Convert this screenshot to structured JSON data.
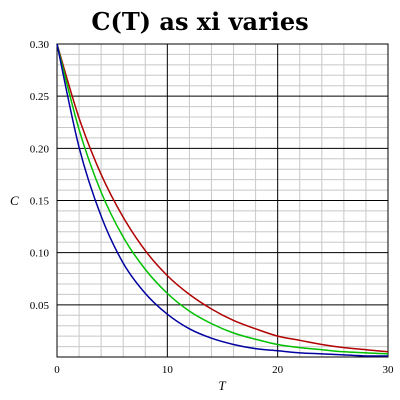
{
  "chart_data": {
    "type": "line",
    "title": "C(T) as xi varies",
    "xlabel": "T",
    "ylabel": "C",
    "xlim": [
      0,
      30
    ],
    "ylim": [
      0,
      0.3
    ],
    "x_ticks": [
      0,
      10,
      20,
      30
    ],
    "x_tick_labels": [
      "0",
      "10",
      "20",
      "30"
    ],
    "y_ticks": [
      0.05,
      0.1,
      0.15,
      0.2,
      0.25,
      0.3
    ],
    "y_tick_labels": [
      "0.05",
      "0.10",
      "0.15",
      "0.20",
      "0.25",
      "0.30"
    ],
    "grid": true,
    "x": [
      0,
      2,
      4,
      6,
      8,
      10,
      12,
      14,
      16,
      18,
      20,
      22,
      24,
      26,
      28,
      30
    ],
    "series": [
      {
        "color": "#b00000",
        "values": [
          0.3,
          0.229,
          0.175,
          0.134,
          0.102,
          0.078,
          0.06,
          0.046,
          0.035,
          0.027,
          0.02,
          0.016,
          0.012,
          0.009,
          0.007,
          0.005
        ]
      },
      {
        "color": "#00c000",
        "values": [
          0.3,
          0.218,
          0.158,
          0.115,
          0.084,
          0.061,
          0.044,
          0.032,
          0.023,
          0.017,
          0.012,
          0.009,
          0.007,
          0.005,
          0.004,
          0.003
        ]
      },
      {
        "color": "#0000a0",
        "values": [
          0.3,
          0.201,
          0.135,
          0.09,
          0.061,
          0.041,
          0.027,
          0.018,
          0.012,
          0.008,
          0.006,
          0.004,
          0.003,
          0.002,
          0.001,
          0.001
        ]
      }
    ]
  }
}
